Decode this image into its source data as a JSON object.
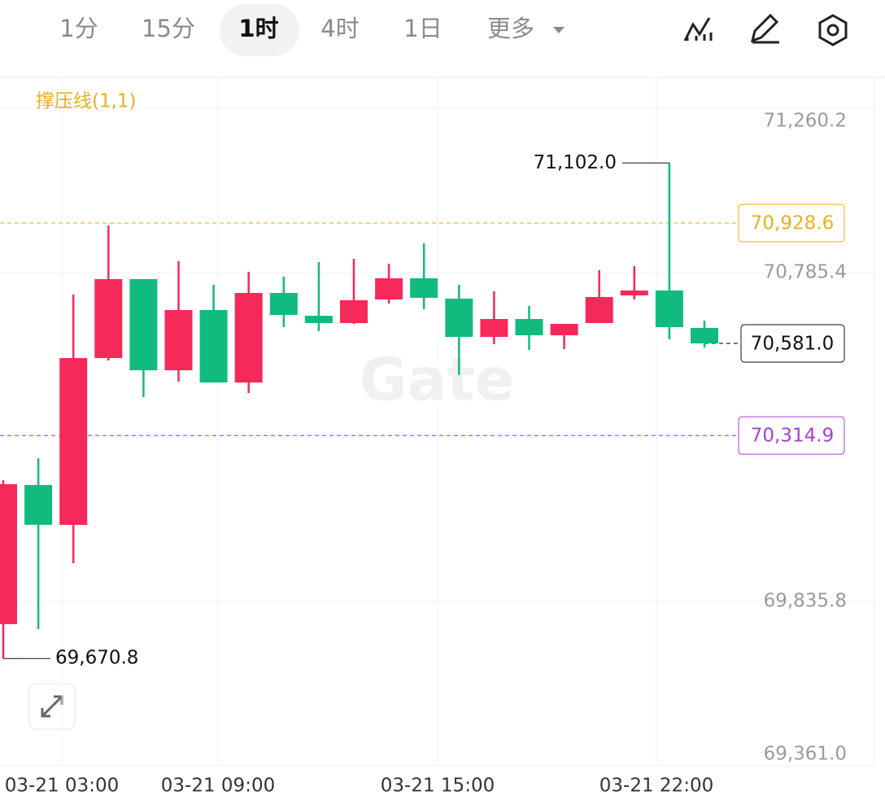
{
  "toolbar": {
    "tabs": [
      "1分",
      "15分",
      "1时",
      "4时",
      "1日",
      "更多"
    ],
    "active": 2
  },
  "chart_data": {
    "type": "candlestick",
    "indicator": "撑压线(1,1)",
    "watermark": "Gate",
    "time_labels": [
      "03-21 03:00",
      "03-21 09:00",
      "03-21 15:00",
      "03-21 22:00"
    ],
    "up_color": "#f5295a",
    "down_color": "#10bb7d",
    "open": [
      69770.0,
      70172.0,
      70056.7,
      70538.6,
      70766.6,
      70503.3,
      70677.3,
      70468.0,
      70726.6,
      70660.8,
      70639.7,
      70707.8,
      70769.0,
      70710.2,
      70599.7,
      70651.4,
      70604.4,
      70639.7,
      70719.6,
      70733.7,
      70625.6
    ],
    "high": [
      70186.0,
      70249.0,
      70721.9,
      70921.7,
      70766.6,
      70818.3,
      70750.2,
      70787.8,
      70773.6,
      70816.0,
      70825.4,
      70811.3,
      70870.0,
      70750.2,
      70731.3,
      70689.0,
      70637.3,
      70792.5,
      70804.2,
      71102.0,
      70646.7
    ],
    "low": [
      69670.8,
      69755.9,
      69946.3,
      70531.6,
      70425.8,
      70470.4,
      70468.0,
      70437.5,
      70627.9,
      70616.2,
      70637.0,
      70696.1,
      70679.6,
      70489.2,
      70578.6,
      70562.1,
      70564.5,
      70639.7,
      70707.8,
      70592.6,
      70569.2
    ],
    "close": [
      70174.3,
      70057.0,
      70538.6,
      70766.6,
      70503.3,
      70677.3,
      70468.0,
      70726.6,
      70663.2,
      70639.7,
      70705.5,
      70769.0,
      70712.6,
      70599.7,
      70651.4,
      70604.4,
      70637.3,
      70714.9,
      70733.7,
      70627.9,
      70581.0
    ],
    "ylim": [
      69361.0,
      71349.5
    ],
    "yticks": [
      {
        "value": 71260.2,
        "label": "71,260.2"
      },
      {
        "value": 70785.4,
        "label": "70,785.4"
      },
      {
        "value": 69835.8,
        "label": "69,835.8"
      },
      {
        "value": 69361.0,
        "label": "69,361.0"
      }
    ],
    "annotations": [
      {
        "value": 71102.0,
        "label": "71,102.0"
      },
      {
        "value": 69670.8,
        "label": "69,670.8"
      }
    ],
    "price_lines": [
      {
        "value": 70928.6,
        "label": "70,928.6",
        "color": "#e8b020"
      },
      {
        "value": 70314.9,
        "label": "70,314.9",
        "color": "#a63fd0"
      },
      {
        "value": 70581.0,
        "label": "70,581.0",
        "color": "#111111"
      }
    ]
  }
}
